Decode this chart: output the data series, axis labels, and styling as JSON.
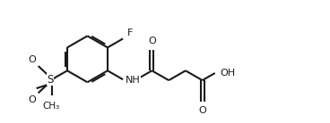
{
  "background_color": "#ffffff",
  "line_color": "#1a1a1a",
  "line_width": 1.5,
  "fig_width": 3.68,
  "fig_height": 1.38,
  "dpi": 100,
  "font_size": 7.5,
  "xlim": [
    0,
    10
  ],
  "ylim": [
    0,
    3.75
  ]
}
